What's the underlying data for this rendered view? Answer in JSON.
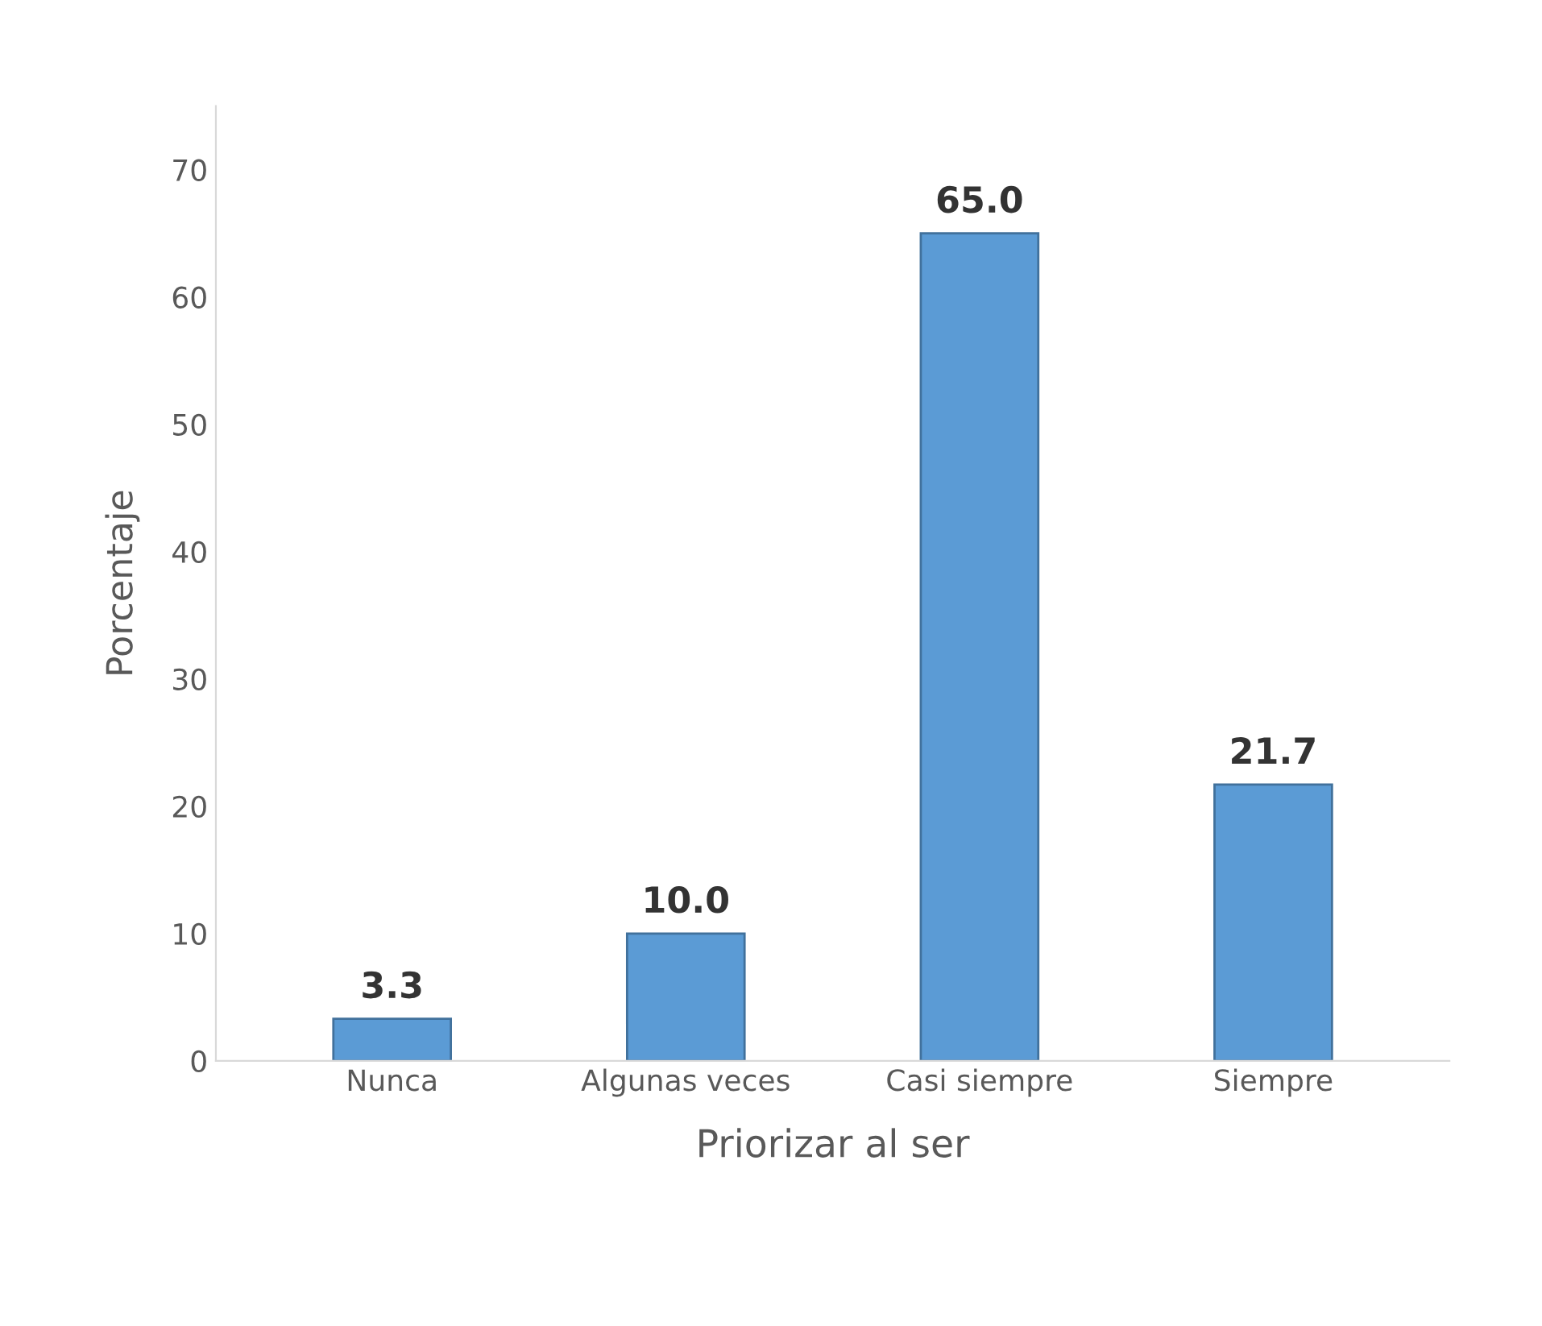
{
  "chart_data": {
    "type": "bar",
    "categories": [
      "Nunca",
      "Algunas veces",
      "Casi siempre",
      "Siempre"
    ],
    "values": [
      3.3,
      10.0,
      65.0,
      21.7
    ],
    "color": "#5b9bd5",
    "xlabel": "Priorizar al ser",
    "ylabel": "Porcentaje",
    "ylim": [
      0,
      75
    ],
    "yticks": [
      0,
      10,
      20,
      30,
      40,
      50,
      60,
      70
    ],
    "value_labels": [
      "3.3",
      "10.0",
      "65.0",
      "21.7"
    ],
    "grid": false
  }
}
